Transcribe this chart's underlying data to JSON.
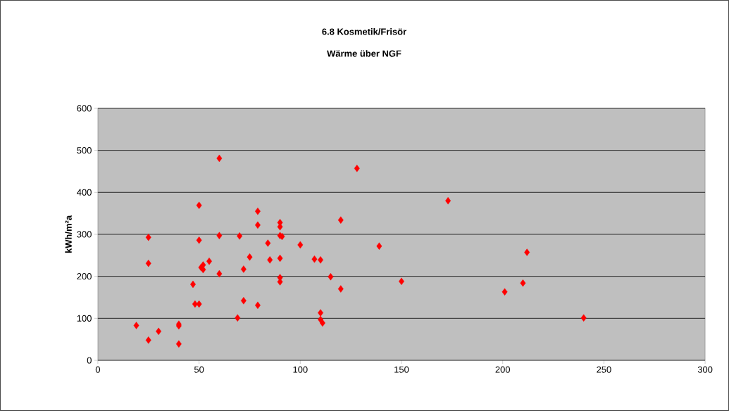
{
  "chart_data": {
    "type": "scatter",
    "title": "6.8 Kosmetik/Frisör",
    "subtitle": "Wärme über NGF",
    "ylabel": "kWh/m²a",
    "x": [
      19,
      25,
      25,
      25,
      30,
      40,
      40,
      40,
      47,
      48,
      50,
      50,
      50,
      51,
      52,
      55,
      52,
      60,
      60,
      60,
      69,
      70,
      72,
      72,
      75,
      79,
      79,
      79,
      84,
      85,
      90,
      90,
      90,
      91,
      90,
      90,
      90,
      100,
      107,
      110,
      115,
      120,
      120,
      110,
      110,
      111,
      128,
      139,
      150,
      173,
      201,
      210,
      212,
      240
    ],
    "values": [
      83,
      293,
      231,
      48,
      69,
      86,
      82,
      39,
      181,
      134,
      134,
      369,
      286,
      221,
      227,
      236,
      216,
      481,
      297,
      206,
      101,
      296,
      217,
      142,
      246,
      355,
      322,
      131,
      279,
      239,
      328,
      318,
      297,
      295,
      243,
      197,
      187,
      275,
      241,
      239,
      199,
      334,
      170,
      113,
      97,
      89,
      457,
      272,
      188,
      380,
      163,
      184,
      257,
      101
    ],
    "color": "#ff0000",
    "marker": "diamond",
    "grid": "y",
    "xlim": [
      0,
      300
    ],
    "xticks": [
      0,
      50,
      100,
      150,
      200,
      250,
      300
    ],
    "ylim": [
      0,
      600
    ],
    "yticks": [
      0,
      100,
      200,
      300,
      400,
      500,
      600
    ]
  }
}
